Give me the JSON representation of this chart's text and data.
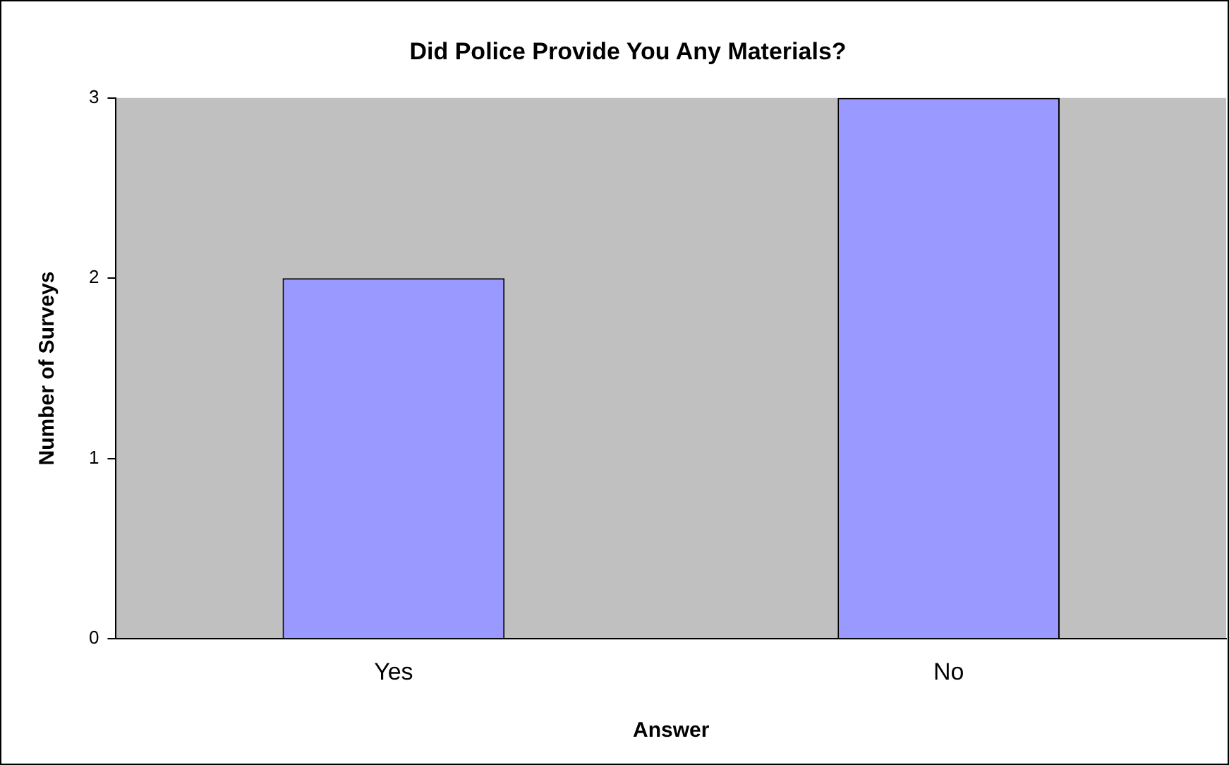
{
  "chart_data": {
    "type": "bar",
    "title": "Did Police Provide You Any Materials?",
    "xlabel": "Answer",
    "ylabel": "Number of Surveys",
    "categories": [
      "Yes",
      "No"
    ],
    "values": [
      2,
      3
    ],
    "color": "#9999ff",
    "ylim": [
      0,
      3
    ],
    "yticks": [
      0,
      1,
      2,
      3
    ],
    "grid": false,
    "legend": false
  }
}
